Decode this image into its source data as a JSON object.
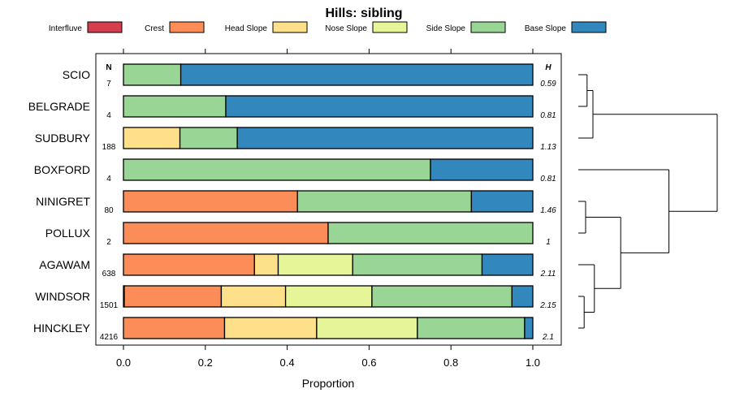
{
  "chart_data": {
    "type": "bar",
    "stacked": true,
    "orientation": "horizontal",
    "title": "Hills: sibling",
    "xlabel": "Proportion",
    "xlim": [
      0,
      1
    ],
    "xticks": [
      "0.0",
      "0.2",
      "0.4",
      "0.6",
      "0.8",
      "1.0"
    ],
    "n_header": "N",
    "h_header": "H",
    "legend_position": "top",
    "series": [
      {
        "name": "Interfluve",
        "color": "#d53e4f"
      },
      {
        "name": "Crest",
        "color": "#fc8d59"
      },
      {
        "name": "Head Slope",
        "color": "#fee08b"
      },
      {
        "name": "Nose Slope",
        "color": "#e6f598"
      },
      {
        "name": "Side Slope",
        "color": "#99d594"
      },
      {
        "name": "Base Slope",
        "color": "#3288bd"
      }
    ],
    "categories": [
      "SCIO",
      "BELGRADE",
      "SUDBURY",
      "BOXFORD",
      "NINIGRET",
      "POLLUX",
      "AGAWAM",
      "WINDSOR",
      "HINCKLEY"
    ],
    "values": [
      [
        0,
        0,
        0,
        0,
        0.14,
        0.86
      ],
      [
        0,
        0,
        0,
        0,
        0.25,
        0.75
      ],
      [
        0,
        0,
        0.138,
        0,
        0.14,
        0.722
      ],
      [
        0,
        0,
        0,
        0,
        0.75,
        0.25
      ],
      [
        0,
        0.425,
        0,
        0,
        0.425,
        0.15
      ],
      [
        0,
        0.5,
        0,
        0,
        0.5,
        0
      ],
      [
        0,
        0.32,
        0.058,
        0.182,
        0.316,
        0.124
      ],
      [
        0.002,
        0.237,
        0.157,
        0.211,
        0.342,
        0.051
      ],
      [
        0,
        0.247,
        0.225,
        0.246,
        0.262,
        0.02
      ]
    ],
    "n": [
      "7",
      "4",
      "188",
      "4",
      "80",
      "2",
      "638",
      "1501",
      "4216"
    ],
    "h": [
      "0.59",
      "0.81",
      "1.13",
      "0.81",
      "1.46",
      "1",
      "2.11",
      "2.15",
      "2.1"
    ],
    "dendrogram_merges": [
      [
        -1,
        -2
      ],
      [
        1,
        -3
      ],
      [
        -8,
        -9
      ],
      [
        3,
        -7
      ],
      [
        -5,
        -6
      ],
      [
        5,
        4
      ],
      [
        -4,
        6
      ],
      [
        2,
        7
      ]
    ],
    "dendrogram_heights": [
      0.06,
      0.1,
      0.04,
      0.11,
      0.05,
      0.29,
      0.62,
      0.95
    ]
  }
}
